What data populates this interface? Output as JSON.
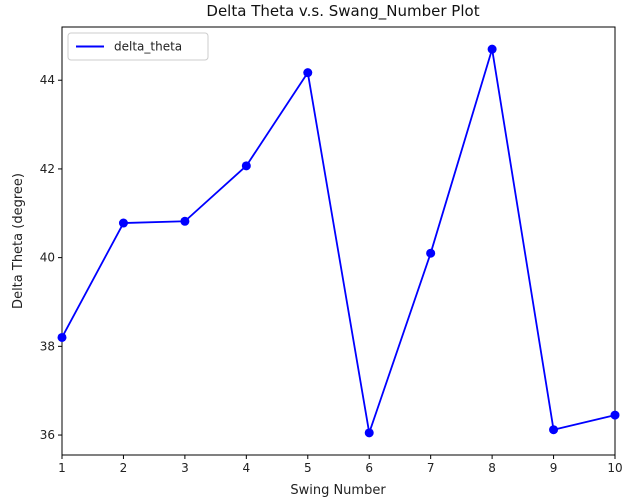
{
  "chart_data": {
    "type": "line",
    "title": "Delta Theta v.s. Swang_Number Plot",
    "xlabel": "Swing Number",
    "ylabel": "Delta Theta (degree)",
    "x": [
      1,
      2,
      3,
      4,
      5,
      6,
      7,
      8,
      9,
      10
    ],
    "xlim": [
      1,
      10
    ],
    "ylim": [
      35.55,
      45.2
    ],
    "xticks": [
      "1",
      "2",
      "3",
      "4",
      "5",
      "6",
      "7",
      "8",
      "9",
      "10"
    ],
    "yticks": [
      "36",
      "38",
      "40",
      "42",
      "44"
    ],
    "grid": false,
    "legend_position": "top-left",
    "series": [
      {
        "name": "delta_theta",
        "color": "#0000ff",
        "marker": "circle",
        "values": [
          38.2,
          40.78,
          40.82,
          42.07,
          44.17,
          36.05,
          40.1,
          44.7,
          36.12,
          36.45
        ]
      }
    ]
  }
}
